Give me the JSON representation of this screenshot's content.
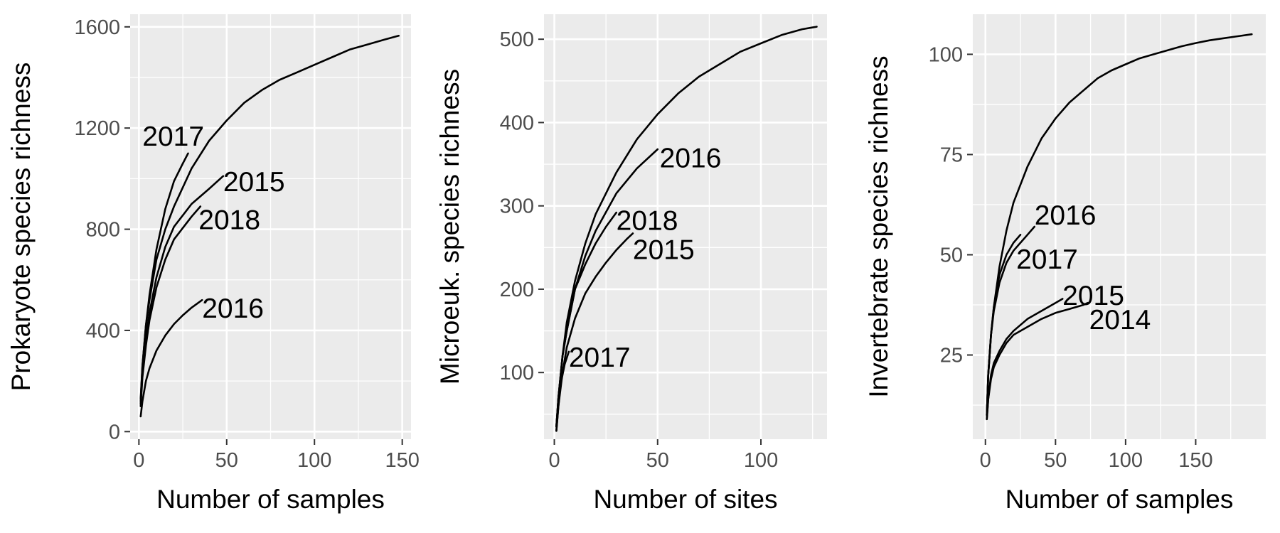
{
  "chart_data": [
    {
      "type": "line",
      "xlabel": "Number of samples",
      "ylabel": "Prokaryote species richness",
      "xlim": [
        -5,
        155
      ],
      "ylim": [
        -30,
        1650
      ],
      "xticks": [
        0,
        50,
        100,
        150
      ],
      "yticks": [
        0,
        400,
        800,
        1200,
        1600
      ],
      "grid": true,
      "series": [
        {
          "label": "2017",
          "x": [
            1,
            2,
            4,
            6,
            10,
            15,
            20,
            25,
            28
          ],
          "y": [
            120,
            260,
            420,
            540,
            720,
            880,
            990,
            1060,
            1100
          ]
        },
        {
          "label": "2015",
          "x": [
            1,
            2,
            4,
            6,
            10,
            15,
            20,
            30,
            40,
            48
          ],
          "y": [
            110,
            230,
            370,
            470,
            610,
            730,
            810,
            900,
            960,
            1010
          ]
        },
        {
          "label": "2018",
          "x": [
            1,
            2,
            4,
            6,
            10,
            15,
            20,
            30,
            35
          ],
          "y": [
            100,
            215,
            340,
            440,
            570,
            680,
            760,
            850,
            890
          ]
        },
        {
          "label": "2016",
          "x": [
            1,
            2,
            4,
            6,
            10,
            15,
            20,
            25,
            30,
            36
          ],
          "y": [
            60,
            120,
            200,
            250,
            320,
            380,
            425,
            460,
            490,
            520
          ]
        },
        {
          "label": "",
          "x": [
            1,
            2,
            4,
            6,
            10,
            15,
            20,
            30,
            40,
            50,
            60,
            70,
            80,
            90,
            100,
            110,
            120,
            130,
            140,
            148
          ],
          "y": [
            130,
            260,
            420,
            520,
            680,
            800,
            890,
            1040,
            1150,
            1230,
            1300,
            1350,
            1390,
            1420,
            1450,
            1480,
            1510,
            1530,
            1550,
            1565
          ]
        }
      ],
      "labels": [
        {
          "text": "2017",
          "x": 2,
          "y": 1170
        },
        {
          "text": "2015",
          "x": 48,
          "y": 990
        },
        {
          "text": "2018",
          "x": 34,
          "y": 840
        },
        {
          "text": "2016",
          "x": 36,
          "y": 490
        }
      ]
    },
    {
      "type": "line",
      "xlabel": "Number of sites",
      "ylabel": "Microeuk. species richness",
      "xlim": [
        -5,
        132
      ],
      "ylim": [
        20,
        530
      ],
      "xticks": [
        0,
        50,
        100
      ],
      "yticks": [
        100,
        200,
        300,
        400,
        500
      ],
      "grid": true,
      "series": [
        {
          "label": "2016",
          "x": [
            1,
            2,
            4,
            6,
            10,
            15,
            20,
            30,
            40,
            50
          ],
          "y": [
            35,
            70,
            120,
            150,
            200,
            240,
            270,
            315,
            345,
            368
          ]
        },
        {
          "label": "2018",
          "x": [
            1,
            2,
            4,
            6,
            10,
            15,
            20,
            25,
            30
          ],
          "y": [
            35,
            70,
            120,
            150,
            200,
            230,
            255,
            275,
            292
          ]
        },
        {
          "label": "2015",
          "x": [
            1,
            2,
            4,
            6,
            10,
            15,
            20,
            25,
            30,
            35,
            38
          ],
          "y": [
            30,
            60,
            100,
            130,
            165,
            195,
            215,
            232,
            247,
            260,
            267
          ]
        },
        {
          "label": "2017",
          "x": [
            1,
            2,
            3,
            5,
            7
          ],
          "y": [
            30,
            60,
            85,
            110,
            125
          ]
        },
        {
          "label": "",
          "x": [
            1,
            2,
            4,
            6,
            10,
            15,
            20,
            30,
            40,
            50,
            60,
            70,
            80,
            90,
            100,
            110,
            120,
            127
          ],
          "y": [
            35,
            70,
            120,
            160,
            210,
            255,
            290,
            340,
            380,
            410,
            435,
            455,
            470,
            485,
            495,
            505,
            512,
            515
          ]
        }
      ],
      "labels": [
        {
          "text": "2016",
          "x": 51,
          "y": 358
        },
        {
          "text": "2018",
          "x": 30,
          "y": 283
        },
        {
          "text": "2015",
          "x": 38,
          "y": 248
        },
        {
          "text": "2017",
          "x": 7,
          "y": 119
        }
      ]
    },
    {
      "type": "line",
      "xlabel": "Number of samples",
      "ylabel": "Invertebrate species richness",
      "xlim": [
        -9,
        200
      ],
      "ylim": [
        4,
        110
      ],
      "xticks": [
        0,
        50,
        100,
        150
      ],
      "yticks": [
        25,
        50,
        75,
        100
      ],
      "grid": true,
      "series": [
        {
          "label": "2016",
          "x": [
            1,
            2,
            4,
            6,
            10,
            15,
            20,
            25,
            30,
            35
          ],
          "y": [
            10,
            20,
            30,
            36,
            43,
            48,
            51,
            53,
            55,
            57
          ]
        },
        {
          "label": "2017",
          "x": [
            1,
            2,
            4,
            6,
            10,
            15,
            20,
            25
          ],
          "y": [
            10,
            20,
            30,
            37,
            45,
            50,
            53,
            55
          ]
        },
        {
          "label": "2015",
          "x": [
            1,
            2,
            4,
            6,
            10,
            15,
            20,
            30,
            40,
            50,
            55
          ],
          "y": [
            9,
            14,
            20,
            23,
            26,
            29,
            31,
            34,
            36,
            38,
            39
          ]
        },
        {
          "label": "2014",
          "x": [
            1,
            2,
            4,
            6,
            10,
            15,
            20,
            30,
            40,
            50,
            60,
            70,
            73
          ],
          "y": [
            9,
            14,
            19,
            22,
            25,
            28,
            30,
            32,
            34,
            35.5,
            36.5,
            37.5,
            38
          ]
        },
        {
          "label": "",
          "x": [
            1,
            2,
            4,
            6,
            10,
            15,
            20,
            30,
            40,
            50,
            60,
            70,
            80,
            90,
            100,
            110,
            120,
            130,
            140,
            150,
            160,
            170,
            180,
            190
          ],
          "y": [
            10,
            20,
            30,
            37,
            47,
            56,
            63,
            72,
            79,
            84,
            88,
            91,
            94,
            96,
            97.5,
            99,
            100,
            101,
            102,
            102.8,
            103.5,
            104,
            104.5,
            105
          ]
        }
      ],
      "labels": [
        {
          "text": "2016",
          "x": 35,
          "y": 60
        },
        {
          "text": "2017",
          "x": 22,
          "y": 49
        },
        {
          "text": "2015",
          "x": 55,
          "y": 40
        },
        {
          "text": "2014",
          "x": 74,
          "y": 34
        }
      ]
    }
  ]
}
